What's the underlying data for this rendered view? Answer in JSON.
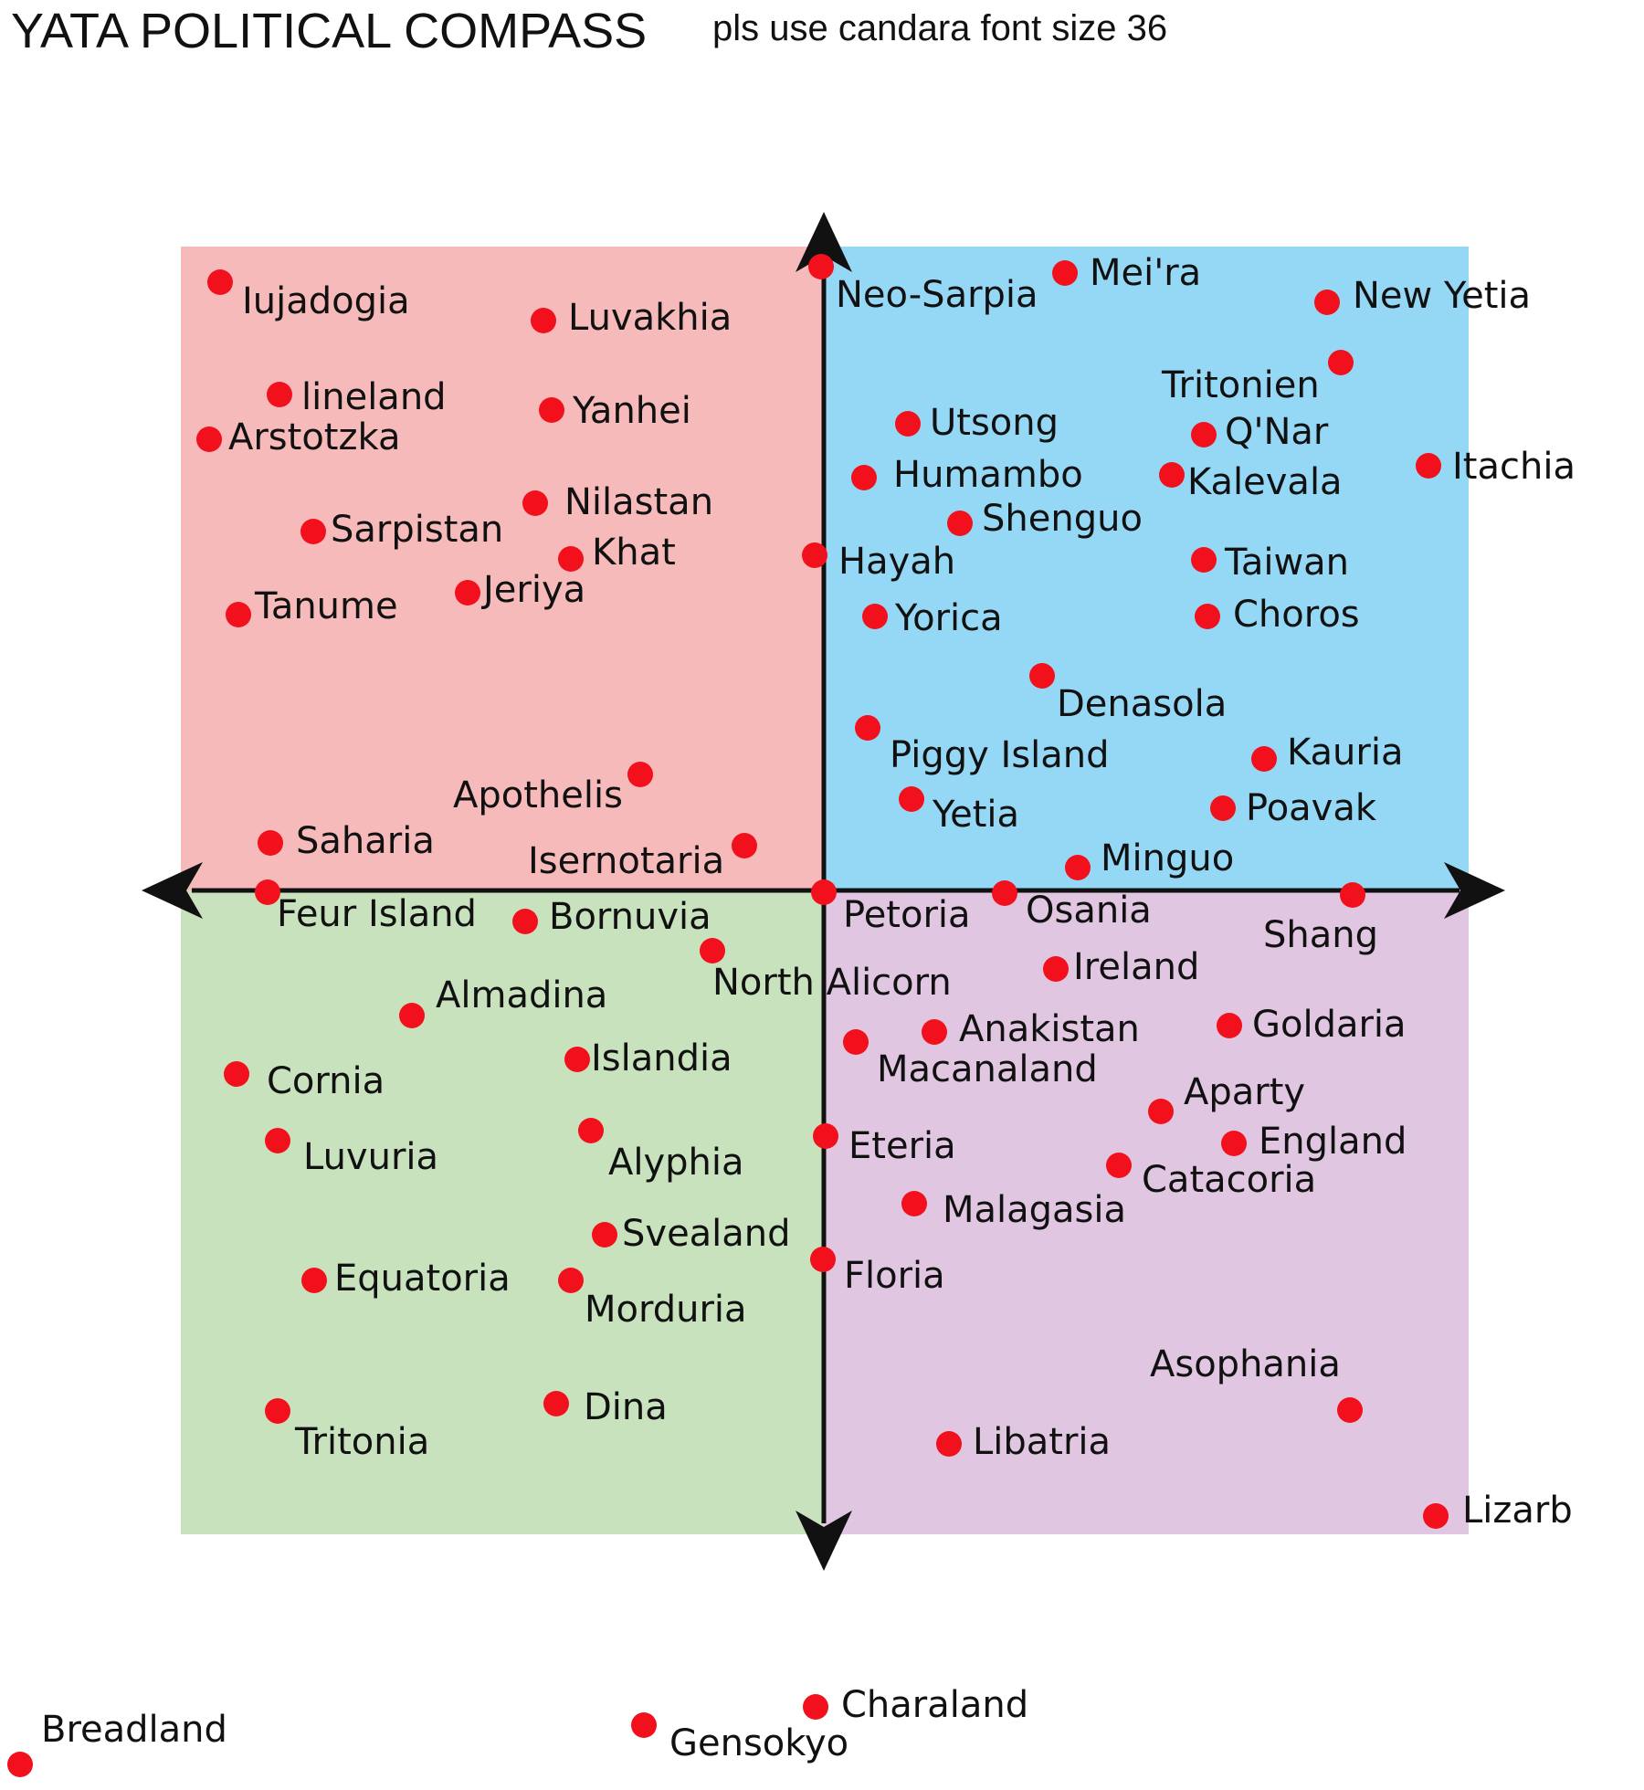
{
  "header": {
    "title": "YATA POLITICAL COMPASS",
    "note": "pls use candara font size 36"
  },
  "colors": {
    "top_left": "#f6baba",
    "top_right": "#95d8f5",
    "bottom_left": "#c8e2bd",
    "bottom_right": "#e0c6e0",
    "axis": "#111111",
    "dot": "#f2101c"
  },
  "countries": [
    {
      "name": "Iujadogia"
    },
    {
      "name": "Luvakhia"
    },
    {
      "name": "lineland"
    },
    {
      "name": "Yanhei"
    },
    {
      "name": "Arstotzka"
    },
    {
      "name": "Nilastan"
    },
    {
      "name": "Sarpistan"
    },
    {
      "name": "Khat"
    },
    {
      "name": "Jeriya"
    },
    {
      "name": "Tanume"
    },
    {
      "name": "Apothelis"
    },
    {
      "name": "Saharia"
    },
    {
      "name": "Isernotaria"
    },
    {
      "name": "Neo-Sarpia"
    },
    {
      "name": "Mei'ra"
    },
    {
      "name": "New Yetia"
    },
    {
      "name": "Tritonien"
    },
    {
      "name": "Utsong"
    },
    {
      "name": "Q'Nar"
    },
    {
      "name": "Humambo"
    },
    {
      "name": "Kalevala"
    },
    {
      "name": "Itachia"
    },
    {
      "name": "Shenguo"
    },
    {
      "name": "Hayah"
    },
    {
      "name": "Taiwan"
    },
    {
      "name": "Yorica"
    },
    {
      "name": "Choros"
    },
    {
      "name": "Denasola"
    },
    {
      "name": "Piggy Island"
    },
    {
      "name": "Kauria"
    },
    {
      "name": "Yetia"
    },
    {
      "name": "Poavak"
    },
    {
      "name": "Minguo"
    },
    {
      "name": "Feur Island"
    },
    {
      "name": "Bornuvia"
    },
    {
      "name": "Petoria"
    },
    {
      "name": "Osania"
    },
    {
      "name": "Shang"
    },
    {
      "name": "North Alicorn"
    },
    {
      "name": "Ireland"
    },
    {
      "name": "Almadina"
    },
    {
      "name": "Anakistan"
    },
    {
      "name": "Goldaria"
    },
    {
      "name": "Macanaland"
    },
    {
      "name": "Islandia"
    },
    {
      "name": "Cornia"
    },
    {
      "name": "Aparty"
    },
    {
      "name": "Luvuria"
    },
    {
      "name": "Alyphia"
    },
    {
      "name": "Eteria"
    },
    {
      "name": "England"
    },
    {
      "name": "Catacoria"
    },
    {
      "name": "Malagasia"
    },
    {
      "name": "Svealand"
    },
    {
      "name": "Equatoria"
    },
    {
      "name": "Morduria"
    },
    {
      "name": "Floria"
    },
    {
      "name": "Asophania"
    },
    {
      "name": "Dina"
    },
    {
      "name": "Tritonia"
    },
    {
      "name": "Libatria"
    },
    {
      "name": "Lizarb"
    },
    {
      "name": "Charaland"
    },
    {
      "name": "Breadland"
    },
    {
      "name": "Gensokyo"
    }
  ]
}
